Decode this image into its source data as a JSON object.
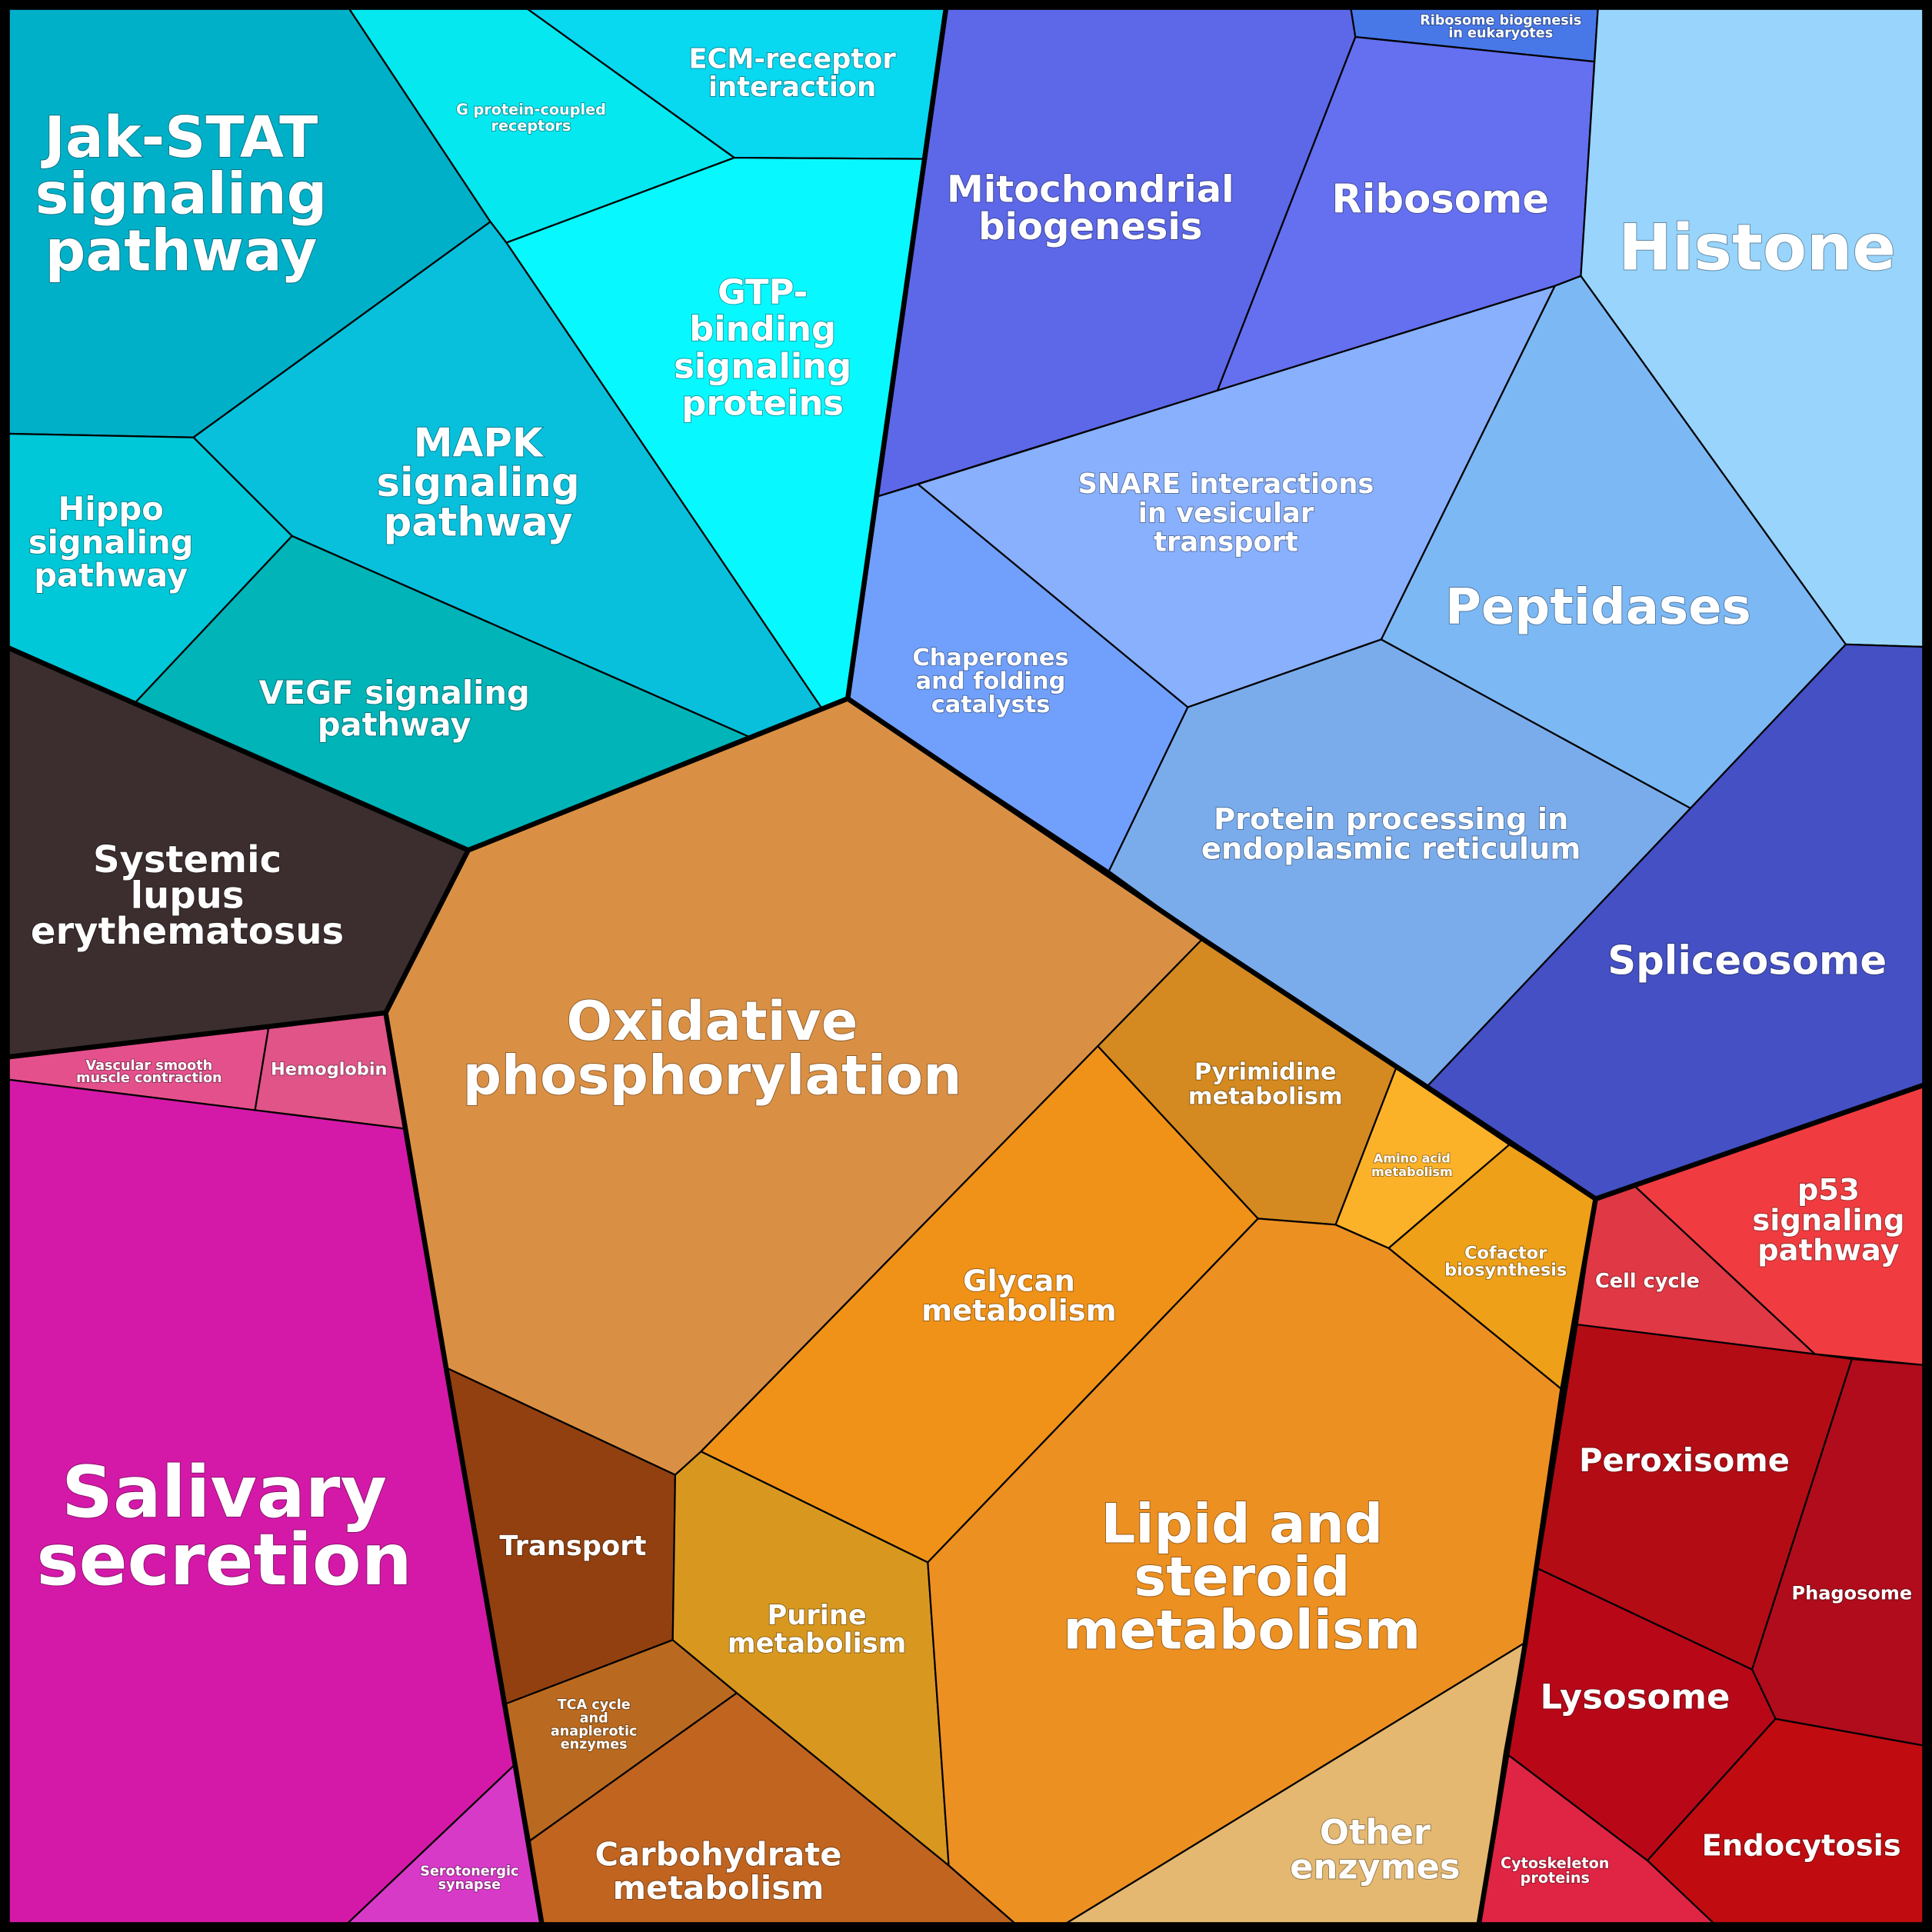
{
  "title": "Voronoi treemap of pathway categories",
  "cells": {
    "jakstat": {
      "lines": [
        "Jak-STAT",
        "signaling",
        "pathway"
      ],
      "color": "#00b0c8"
    },
    "gpcr": {
      "lines": [
        "G protein-coupled",
        "receptors"
      ],
      "color": "#05e8f0"
    },
    "ecm": {
      "lines": [
        "ECM-receptor",
        "interaction"
      ],
      "color": "#08d8f0"
    },
    "gtp": {
      "lines": [
        "GTP-",
        "binding",
        "signaling",
        "proteins"
      ],
      "color": "#08f8ff"
    },
    "mapk": {
      "lines": [
        "MAPK",
        "signaling",
        "pathway"
      ],
      "color": "#08c0dc"
    },
    "hippo": {
      "lines": [
        "Hippo",
        "signaling",
        "pathway"
      ],
      "color": "#00c8d8"
    },
    "vegf": {
      "lines": [
        "VEGF signaling",
        "pathway"
      ],
      "color": "#00b4b8"
    },
    "sle": {
      "lines": [
        "Systemic",
        "lupus",
        "erythematosus"
      ],
      "color": "#3c2e2e"
    },
    "vascular": {
      "lines": [
        "Vascular smooth",
        "muscle contraction"
      ],
      "color": "#e4508c"
    },
    "hemoglobin": {
      "lines": [
        "Hemoglobin"
      ],
      "color": "#e05488"
    },
    "salivary": {
      "lines": [
        "Salivary",
        "secretion"
      ],
      "color": "#d419a8"
    },
    "serotonergic": {
      "lines": [
        "Serotonergic",
        "synapse"
      ],
      "color": "#d83ac8"
    },
    "oxphos": {
      "lines": [
        "Oxidative",
        "phosphorylation"
      ],
      "color": "#da9044"
    },
    "transport": {
      "lines": [
        "Transport"
      ],
      "color": "#924010"
    },
    "tca": {
      "lines": [
        "TCA cycle",
        "and",
        "anaplerotic",
        "enzymes"
      ],
      "color": "#ba6a20"
    },
    "carbohydrate": {
      "lines": [
        "Carbohydrate",
        "metabolism"
      ],
      "color": "#c06420"
    },
    "purine": {
      "lines": [
        "Purine",
        "metabolism"
      ],
      "color": "#d89820"
    },
    "glycan": {
      "lines": [
        "Glycan",
        "metabolism"
      ],
      "color": "#f09218"
    },
    "pyrimidine": {
      "lines": [
        "Pyrimidine",
        "metabolism"
      ],
      "color": "#d48a20"
    },
    "aminoacid": {
      "lines": [
        "Amino acid",
        "metabolism"
      ],
      "color": "#fcb228"
    },
    "cofactor": {
      "lines": [
        "Cofactor",
        "biosynthesis"
      ],
      "color": "#eea018"
    },
    "lipid": {
      "lines": [
        "Lipid and",
        "steroid",
        "metabolism"
      ],
      "color": "#ec9022"
    },
    "other": {
      "lines": [
        "Other",
        "enzymes"
      ],
      "color": "#e4b870"
    },
    "ribobio": {
      "lines": [
        "Ribosome biogenesis",
        "in eukaryotes"
      ],
      "color": "#4878e8"
    },
    "ribosome": {
      "lines": [
        "Ribosome"
      ],
      "color": "#6470f0"
    },
    "mito": {
      "lines": [
        "Mitochondrial",
        "biogenesis"
      ],
      "color": "#5c68e8"
    },
    "histone": {
      "lines": [
        "Histone"
      ],
      "color": "#98d4fc"
    },
    "snare": {
      "lines": [
        "SNARE interactions",
        "in vesicular",
        "transport"
      ],
      "color": "#88b0fc"
    },
    "chaperones": {
      "lines": [
        "Chaperones",
        "and folding",
        "catalysts"
      ],
      "color": "#70a0fc"
    },
    "peptidases": {
      "lines": [
        "Peptidases"
      ],
      "color": "#7cb8f4"
    },
    "protproc": {
      "lines": [
        "Protein processing in",
        "endoplasmic reticulum"
      ],
      "color": "#7aacec"
    },
    "spliceosome": {
      "lines": [
        "Spliceosome"
      ],
      "color": "#4450c4"
    },
    "p53": {
      "lines": [
        "p53",
        "signaling",
        "pathway"
      ],
      "color": "#f03c40"
    },
    "cellcycle": {
      "lines": [
        "Cell cycle"
      ],
      "color": "#e03844"
    },
    "peroxisome": {
      "lines": [
        "Peroxisome"
      ],
      "color": "#b40c14"
    },
    "phagosome": {
      "lines": [
        "Phagosome"
      ],
      "color": "#b00c1c"
    },
    "lysosome": {
      "lines": [
        "Lysosome"
      ],
      "color": "#b80818"
    },
    "endocytosis": {
      "lines": [
        "Endocytosis"
      ],
      "color": "#c00c10"
    },
    "cytoskeleton": {
      "lines": [
        "Cytoskeleton",
        "proteins"
      ],
      "color": "#e02444"
    }
  }
}
